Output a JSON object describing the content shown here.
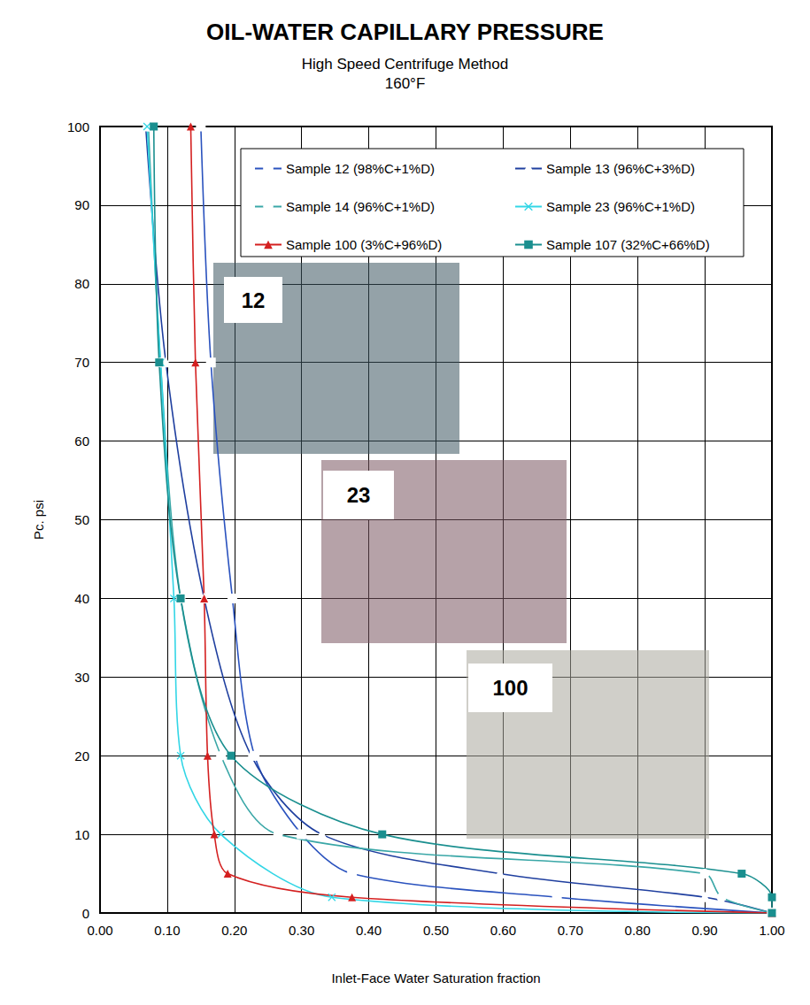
{
  "chart_data": {
    "type": "line",
    "title": "OIL-WATER CAPILLARY PRESSURE",
    "subtitle": [
      "High Speed Centrifuge Method",
      "160°F"
    ],
    "x_label": "Inlet-Face Water Saturation fraction",
    "y_label": "Pc. psi",
    "xlim": [
      0,
      1
    ],
    "xticks": [
      {
        "value": 0,
        "label": "0.00"
      },
      {
        "value": 0.1,
        "label": "0.10"
      },
      {
        "value": 0.2,
        "label": "0.20"
      },
      {
        "value": 0.3,
        "label": "0.30"
      },
      {
        "value": 0.4,
        "label": "0.40"
      },
      {
        "value": 0.5,
        "label": "0.50"
      },
      {
        "value": 0.6,
        "label": "0.60"
      },
      {
        "value": 0.7,
        "label": "0.70"
      },
      {
        "value": 0.8,
        "label": "0.80"
      },
      {
        "value": 0.9,
        "label": "0.90"
      },
      {
        "value": 1,
        "label": "1.00"
      }
    ],
    "ylim": [
      0,
      100
    ],
    "yticks": [
      0,
      10,
      20,
      30,
      40,
      50,
      60,
      70,
      80,
      90,
      100
    ],
    "grid": true,
    "legend": "top-right",
    "annotations": [
      "12",
      "23",
      "100"
    ],
    "series": [
      {
        "name": "Sample 12 (98%C+1%D)",
        "color": "#2a52be",
        "marker": "square-open",
        "x": [
          1.0,
          0.68,
          0.375,
          0.3,
          0.23,
          0.197,
          0.165,
          0.15
        ],
        "values": [
          0,
          2,
          5,
          10,
          20,
          40,
          70,
          100
        ]
      },
      {
        "name": "Sample 13 (96%C+3%D)",
        "color": "#1f3f9f",
        "marker": "triangle-open",
        "x": [
          1.0,
          0.9,
          0.595,
          0.33,
          0.225,
          0.155,
          0.098,
          0.068
        ],
        "values": [
          0,
          2,
          5,
          10,
          20,
          40,
          70,
          100
        ]
      },
      {
        "name": "Sample 14 (96%C+1%D)",
        "color": "#3aa7a7",
        "marker": "circle-open",
        "x": [
          1.0,
          0.925,
          0.9,
          0.265,
          0.18,
          0.12,
          0.09,
          0.072
        ],
        "values": [
          0,
          2,
          5,
          10,
          20,
          40,
          70,
          100
        ]
      },
      {
        "name": "Sample 23 (96%C+1%D)",
        "color": "#33d6e6",
        "marker": "x",
        "x": [
          1.0,
          0.345,
          0.18,
          0.12,
          0.11,
          0.09,
          0.07
        ],
        "values": [
          0,
          2,
          10,
          20,
          40,
          70,
          100
        ]
      },
      {
        "name": "Sample 100 (3%C+96%D)",
        "color": "#d42020",
        "marker": "triangle",
        "x": [
          1.0,
          0.375,
          0.19,
          0.17,
          0.16,
          0.155,
          0.142,
          0.135
        ],
        "values": [
          0,
          2,
          5,
          10,
          20,
          40,
          70,
          100
        ]
      },
      {
        "name": "Sample 107 (32%C+66%D)",
        "color": "#1a8f8f",
        "marker": "square",
        "x": [
          1.0,
          1.0,
          0.955,
          0.42,
          0.195,
          0.12,
          0.088,
          0.08
        ],
        "values": [
          0,
          2,
          5,
          10,
          20,
          40,
          70,
          100
        ]
      }
    ]
  }
}
